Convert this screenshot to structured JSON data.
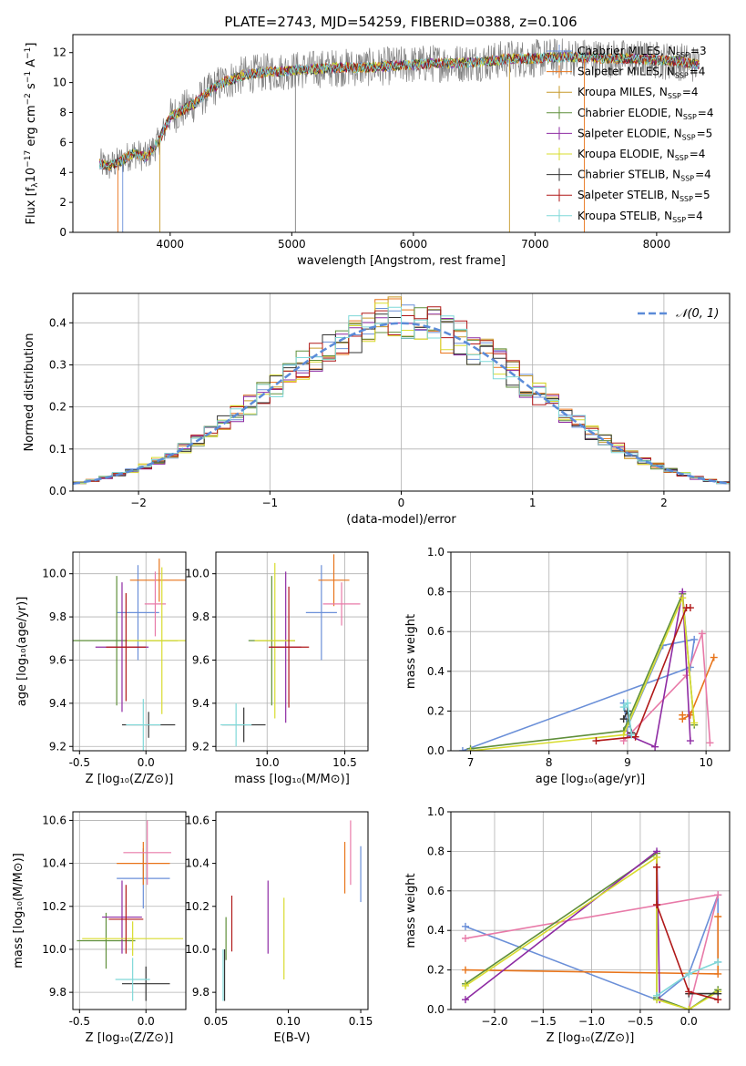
{
  "figure": {
    "title": "PLATE=2743, MJD=54259, FIBERID=0388, z=0.106"
  },
  "chart_data": [
    {
      "id": "spectrum",
      "type": "line",
      "xlabel": "wavelength [Angstrom, rest frame]",
      "ylabel_main": "Flux [f",
      "ylabel_sub": "λ",
      "ylabel_tail": "10",
      "ylabel_exp1": "−17",
      "ylabel_mid": " erg cm",
      "ylabel_exp2": "−2",
      "ylabel_mid2": " s",
      "ylabel_exp3": "−1",
      "ylabel_mid3": " A",
      "ylabel_exp4": "−1",
      "ylabel_end": "]",
      "xlim": [
        3200,
        8600
      ],
      "ylim": [
        0,
        13.2
      ],
      "xticks": [
        4000,
        5000,
        6000,
        7000,
        8000
      ],
      "yticks": [
        0,
        2,
        4,
        6,
        8,
        10,
        12
      ],
      "x": [
        3420,
        3500,
        3600,
        3700,
        3800,
        3900,
        4000,
        4200,
        4400,
        4600,
        4800,
        5000,
        5200,
        5400,
        5600,
        5800,
        6000,
        6200,
        6400,
        6600,
        6800,
        7000,
        7200,
        7400,
        7600,
        7800,
        8000,
        8200,
        8350
      ],
      "y": [
        4.6,
        4.4,
        4.8,
        5.3,
        5.0,
        6.0,
        7.7,
        8.6,
        9.9,
        10.5,
        10.7,
        10.8,
        10.9,
        11.0,
        11.0,
        11.1,
        11.2,
        11.3,
        11.3,
        11.4,
        11.6,
        11.6,
        11.7,
        11.7,
        11.6,
        11.6,
        11.5,
        11.4,
        11.2
      ],
      "series": [
        {
          "name": "Chabrier MILES",
          "nssp": "3",
          "color": "#6a8fd8"
        },
        {
          "name": "Salpeter MILES",
          "nssp": "4",
          "color": "#e8741a"
        },
        {
          "name": "Kroupa MILES",
          "nssp": "4",
          "color": "#c79a2a"
        },
        {
          "name": "Chabrier ELODIE",
          "nssp": "4",
          "color": "#5f8f3a"
        },
        {
          "name": "Salpeter ELODIE",
          "nssp": "5",
          "color": "#8e2ba3"
        },
        {
          "name": "Kroupa ELODIE",
          "nssp": "4",
          "color": "#d8dc2e"
        },
        {
          "name": "Chabrier STELIB",
          "nssp": "4",
          "color": "#333333"
        },
        {
          "name": "Salpeter STELIB",
          "nssp": "5",
          "color": "#b01818"
        },
        {
          "name": "Kroupa STELIB",
          "nssp": "4",
          "color": "#7fd8d8"
        }
      ],
      "legend_sub": "SSP",
      "legend_prefix": "N",
      "legend_placement": "right",
      "data_color": "#808080",
      "grid": false
    },
    {
      "id": "residuals",
      "type": "line",
      "xlabel": "(data-model)/error",
      "ylabel": "Normed distribution",
      "xlim": [
        -2.5,
        2.5
      ],
      "ylim": [
        0,
        0.47
      ],
      "xticks": [
        -2,
        -1,
        0,
        1,
        2
      ],
      "xticklabels": [
        "−2",
        "−1",
        "0",
        "1",
        "2"
      ],
      "yticks": [
        0.0,
        0.1,
        0.2,
        0.3,
        0.4
      ],
      "legend": "𝒩(0, 1)",
      "legend_placement": "top-right",
      "model_color": "#5b8bd8",
      "bin_width": 0.1,
      "grid": true
    },
    {
      "id": "age-vs-Z",
      "type": "scatter",
      "xlabel": "Z [log₁₀(Z/Z⊙)]",
      "ylabel": "age  [log₁₀(age/yr)]",
      "xlim": [
        -0.55,
        0.3
      ],
      "ylim": [
        9.18,
        10.1
      ],
      "xticks": [
        -0.5,
        0.0
      ],
      "yticks": [
        9.2,
        9.4,
        9.6,
        9.8,
        10.0
      ],
      "grid": true,
      "points": [
        {
          "x": -0.06,
          "y": 9.82,
          "xerr": 0.16,
          "yerr": 0.22,
          "color": "#6a8fd8"
        },
        {
          "x": 0.1,
          "y": 9.97,
          "xerr": 0.22,
          "yerr": 0.1,
          "color": "#e8741a"
        },
        {
          "x": 0.07,
          "y": 9.86,
          "xerr": 0.08,
          "yerr": 0.15,
          "color": "#e87aa8"
        },
        {
          "x": -0.22,
          "y": 9.69,
          "xerr": 0.46,
          "yerr": 0.3,
          "color": "#5f8f3a"
        },
        {
          "x": -0.18,
          "y": 9.66,
          "xerr": 0.2,
          "yerr": 0.3,
          "color": "#8e2ba3"
        },
        {
          "x": 0.12,
          "y": 9.69,
          "xerr": 0.26,
          "yerr": 0.34,
          "color": "#d8dc2e"
        },
        {
          "x": 0.02,
          "y": 9.3,
          "xerr": 0.2,
          "yerr": 0.06,
          "color": "#333333"
        },
        {
          "x": -0.15,
          "y": 9.66,
          "xerr": 0.15,
          "yerr": 0.25,
          "color": "#b01818"
        },
        {
          "x": -0.02,
          "y": 9.3,
          "xerr": 0.13,
          "yerr": 0.12,
          "color": "#7fd8d8"
        }
      ]
    },
    {
      "id": "age-vs-mass",
      "type": "scatter",
      "xlabel": "mass [log₁₀(M/M⊙)]",
      "ylabel": "",
      "xlim": [
        9.67,
        10.65
      ],
      "ylim": [
        9.18,
        10.1
      ],
      "xticks": [
        10.0,
        10.5
      ],
      "yticks": [
        9.2,
        9.4,
        9.6,
        9.8,
        10.0
      ],
      "grid": true,
      "points": [
        {
          "x": 10.35,
          "y": 9.82,
          "xerr": 0.1,
          "yerr": 0.22,
          "color": "#6a8fd8"
        },
        {
          "x": 10.43,
          "y": 9.97,
          "xerr": 0.1,
          "yerr": 0.12,
          "color": "#e8741a"
        },
        {
          "x": 10.48,
          "y": 9.86,
          "xerr": 0.12,
          "yerr": 0.1,
          "color": "#e87aa8"
        },
        {
          "x": 10.03,
          "y": 9.69,
          "xerr": 0.15,
          "yerr": 0.3,
          "color": "#5f8f3a"
        },
        {
          "x": 10.12,
          "y": 9.66,
          "xerr": 0.1,
          "yerr": 0.35,
          "color": "#8e2ba3"
        },
        {
          "x": 10.05,
          "y": 9.69,
          "xerr": 0.13,
          "yerr": 0.36,
          "color": "#d8dc2e"
        },
        {
          "x": 9.85,
          "y": 9.3,
          "xerr": 0.14,
          "yerr": 0.08,
          "color": "#333333"
        },
        {
          "x": 10.14,
          "y": 9.66,
          "xerr": 0.13,
          "yerr": 0.28,
          "color": "#b01818"
        },
        {
          "x": 9.8,
          "y": 9.3,
          "xerr": 0.1,
          "yerr": 0.1,
          "color": "#7fd8d8"
        }
      ]
    },
    {
      "id": "weight-vs-age",
      "type": "line",
      "xlabel": "age  [log₁₀(age/yr)]",
      "ylabel": "mass weight",
      "xlim": [
        6.75,
        10.3
      ],
      "ylim": [
        0,
        1.0
      ],
      "xticks": [
        7,
        8,
        9,
        10
      ],
      "yticks": [
        0.0,
        0.2,
        0.4,
        0.6,
        0.8,
        1.0
      ],
      "grid": true,
      "series": [
        {
          "color": "#6a8fd8",
          "x": [
            6.9,
            9.8,
            9.85,
            9.45,
            9.0,
            8.95
          ],
          "y": [
            0.0,
            0.42,
            0.56,
            0.53,
            0.12,
            0.24
          ]
        },
        {
          "color": "#e8741a",
          "x": [
            9.7,
            9.7,
            9.8,
            10.1
          ],
          "y": [
            0.18,
            0.16,
            0.18,
            0.47
          ]
        },
        {
          "color": "#e87aa8",
          "x": [
            8.95,
            9.75,
            9.95,
            10.05
          ],
          "y": [
            0.05,
            0.38,
            0.59,
            0.04
          ]
        },
        {
          "color": "#5f8f3a",
          "x": [
            7.0,
            8.95,
            9.7,
            9.85
          ],
          "y": [
            0.01,
            0.1,
            0.79,
            0.13
          ]
        },
        {
          "color": "#8e2ba3",
          "x": [
            9.0,
            9.35,
            9.7,
            9.8
          ],
          "y": [
            0.08,
            0.02,
            0.8,
            0.05
          ]
        },
        {
          "color": "#d8dc2e",
          "x": [
            7.0,
            8.95,
            9.7,
            9.85
          ],
          "y": [
            0.0,
            0.08,
            0.77,
            0.14
          ]
        },
        {
          "color": "#333333",
          "x": [
            8.95,
            9.0,
            9.05
          ],
          "y": [
            0.16,
            0.2,
            0.09
          ]
        },
        {
          "color": "#b01818",
          "x": [
            8.6,
            9.1,
            9.75,
            9.8
          ],
          "y": [
            0.05,
            0.07,
            0.72,
            0.72
          ]
        },
        {
          "color": "#7fd8d8",
          "x": [
            8.95,
            9.0,
            9.05
          ],
          "y": [
            0.22,
            0.24,
            0.08
          ]
        }
      ]
    },
    {
      "id": "mass-vs-Z",
      "type": "scatter",
      "xlabel": "Z [log₁₀(Z/Z⊙)]",
      "ylabel": "mass [log₁₀(M/M⊙)]",
      "xlim": [
        -0.55,
        0.3
      ],
      "ylim": [
        9.72,
        10.64
      ],
      "xticks": [
        -0.5,
        0.0
      ],
      "yticks": [
        9.8,
        10.0,
        10.2,
        10.4,
        10.6
      ],
      "grid": true,
      "points": [
        {
          "x": -0.02,
          "y": 10.33,
          "xerr": 0.2,
          "yerr": 0.14,
          "color": "#6a8fd8"
        },
        {
          "x": -0.02,
          "y": 10.4,
          "xerr": 0.2,
          "yerr": 0.1,
          "color": "#e8741a"
        },
        {
          "x": 0.01,
          "y": 10.45,
          "xerr": 0.18,
          "yerr": 0.15,
          "color": "#e87aa8"
        },
        {
          "x": -0.3,
          "y": 10.04,
          "xerr": 0.22,
          "yerr": 0.13,
          "color": "#5f8f3a"
        },
        {
          "x": -0.18,
          "y": 10.15,
          "xerr": 0.15,
          "yerr": 0.17,
          "color": "#8e2ba3"
        },
        {
          "x": -0.1,
          "y": 10.05,
          "xerr": 0.38,
          "yerr": 0.08,
          "color": "#d8dc2e"
        },
        {
          "x": 0.0,
          "y": 9.84,
          "xerr": 0.18,
          "yerr": 0.08,
          "color": "#333333"
        },
        {
          "x": -0.15,
          "y": 10.14,
          "xerr": 0.13,
          "yerr": 0.16,
          "color": "#b01818"
        },
        {
          "x": -0.1,
          "y": 9.86,
          "xerr": 0.13,
          "yerr": 0.1,
          "color": "#7fd8d8"
        }
      ]
    },
    {
      "id": "mass-vs-EBV",
      "type": "scatter",
      "xlabel": "E(B-V)",
      "ylabel": "",
      "xlim": [
        0.05,
        0.155
      ],
      "ylim": [
        9.72,
        10.64
      ],
      "xticks": [
        0.05,
        0.1,
        0.15
      ],
      "xticklabels": [
        "0.05",
        "0.10",
        "0.15"
      ],
      "yticks": [
        9.8,
        10.0,
        10.2,
        10.4,
        10.6
      ],
      "grid": false,
      "points": [
        {
          "x": 0.15,
          "y": 10.35,
          "yerr": 0.13,
          "color": "#6a8fd8"
        },
        {
          "x": 0.139,
          "y": 10.38,
          "yerr": 0.12,
          "color": "#e8741a"
        },
        {
          "x": 0.143,
          "y": 10.45,
          "yerr": 0.15,
          "color": "#e87aa8"
        },
        {
          "x": 0.057,
          "y": 10.05,
          "yerr": 0.1,
          "color": "#5f8f3a"
        },
        {
          "x": 0.086,
          "y": 10.15,
          "yerr": 0.17,
          "color": "#8e2ba3"
        },
        {
          "x": 0.097,
          "y": 10.05,
          "yerr": 0.19,
          "color": "#d8dc2e"
        },
        {
          "x": 0.056,
          "y": 9.88,
          "yerr": 0.12,
          "color": "#333333"
        },
        {
          "x": 0.061,
          "y": 10.12,
          "yerr": 0.13,
          "color": "#b01818"
        },
        {
          "x": 0.055,
          "y": 9.88,
          "yerr": 0.12,
          "color": "#7fd8d8"
        }
      ]
    },
    {
      "id": "weight-vs-Z",
      "type": "line",
      "xlabel": "Z [log₁₀(Z/Z⊙)]",
      "ylabel": "mass weight",
      "xlim": [
        -2.45,
        0.42
      ],
      "ylim": [
        0,
        1.0
      ],
      "xticks": [
        -2.0,
        -1.5,
        -1.0,
        -0.5,
        0.0
      ],
      "xticklabels": [
        "−2.0",
        "−1.5",
        "−1.0",
        "−0.5",
        "0.0"
      ],
      "yticks": [
        0.0,
        0.2,
        0.4,
        0.6,
        0.8,
        1.0
      ],
      "grid": true,
      "series": [
        {
          "color": "#6a8fd8",
          "x": [
            -2.3,
            -0.33,
            0.0,
            0.3,
            0.3
          ],
          "y": [
            0.42,
            0.05,
            0.18,
            0.58,
            0.24
          ]
        },
        {
          "color": "#e8741a",
          "x": [
            -2.3,
            0.3,
            0.3
          ],
          "y": [
            0.2,
            0.18,
            0.47
          ]
        },
        {
          "color": "#e87aa8",
          "x": [
            -2.3,
            0.3,
            0.0
          ],
          "y": [
            0.36,
            0.58,
            0.0
          ]
        },
        {
          "color": "#5f8f3a",
          "x": [
            -2.3,
            -0.33,
            -0.33,
            0.0,
            0.3
          ],
          "y": [
            0.13,
            0.79,
            0.06,
            0.0,
            0.1
          ]
        },
        {
          "color": "#8e2ba3",
          "x": [
            -2.3,
            -0.33,
            -0.3
          ],
          "y": [
            0.05,
            0.8,
            0.05
          ]
        },
        {
          "color": "#d8dc2e",
          "x": [
            -2.3,
            -0.33,
            -0.33,
            0.0,
            0.3
          ],
          "y": [
            0.12,
            0.77,
            0.05,
            0.0,
            0.09
          ]
        },
        {
          "color": "#333333",
          "x": [
            0.0,
            0.3
          ],
          "y": [
            0.08,
            0.08
          ]
        },
        {
          "color": "#b01818",
          "x": [
            -0.33,
            -0.33,
            0.0,
            0.3
          ],
          "y": [
            0.72,
            0.53,
            0.09,
            0.05
          ]
        },
        {
          "color": "#7fd8d8",
          "x": [
            -0.33,
            0.0,
            0.3
          ],
          "y": [
            0.07,
            0.18,
            0.24
          ]
        }
      ]
    }
  ]
}
